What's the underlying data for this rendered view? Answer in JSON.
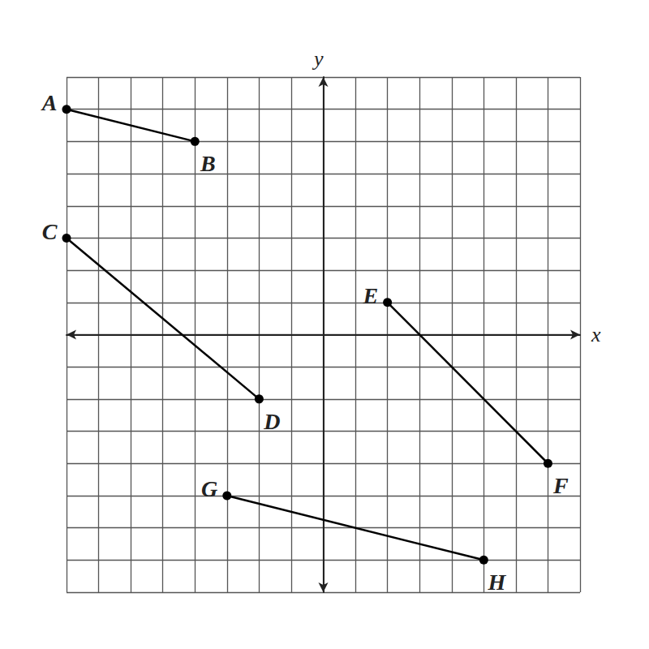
{
  "chart_data": {
    "type": "line",
    "color": "#000000",
    "marker": "circle",
    "grid": true,
    "tick_labels": false,
    "x_label": "x",
    "y_label": "y",
    "xlim": [
      -8,
      8
    ],
    "ylim": [
      -8,
      8
    ],
    "xticks": [
      -8,
      -7,
      -6,
      -5,
      -4,
      -3,
      -2,
      -1,
      0,
      1,
      2,
      3,
      4,
      5,
      6,
      7,
      8
    ],
    "yticks": [
      -8,
      -7,
      -6,
      -5,
      -4,
      -3,
      -2,
      -1,
      0,
      1,
      2,
      3,
      4,
      5,
      6,
      7,
      8
    ],
    "series": [
      {
        "points": [
          {
            "label": "A",
            "x": -8,
            "y": 7
          },
          {
            "label": "B",
            "x": -4,
            "y": 6
          }
        ]
      },
      {
        "points": [
          {
            "label": "C",
            "x": -8,
            "y": 3
          },
          {
            "label": "D",
            "x": -2,
            "y": -2
          }
        ]
      },
      {
        "points": [
          {
            "label": "E",
            "x": 2,
            "y": 1
          },
          {
            "label": "F",
            "x": 7,
            "y": -4
          }
        ]
      },
      {
        "points": [
          {
            "label": "G",
            "x": -3,
            "y": -5
          },
          {
            "label": "H",
            "x": 5,
            "y": -7
          }
        ]
      }
    ]
  }
}
